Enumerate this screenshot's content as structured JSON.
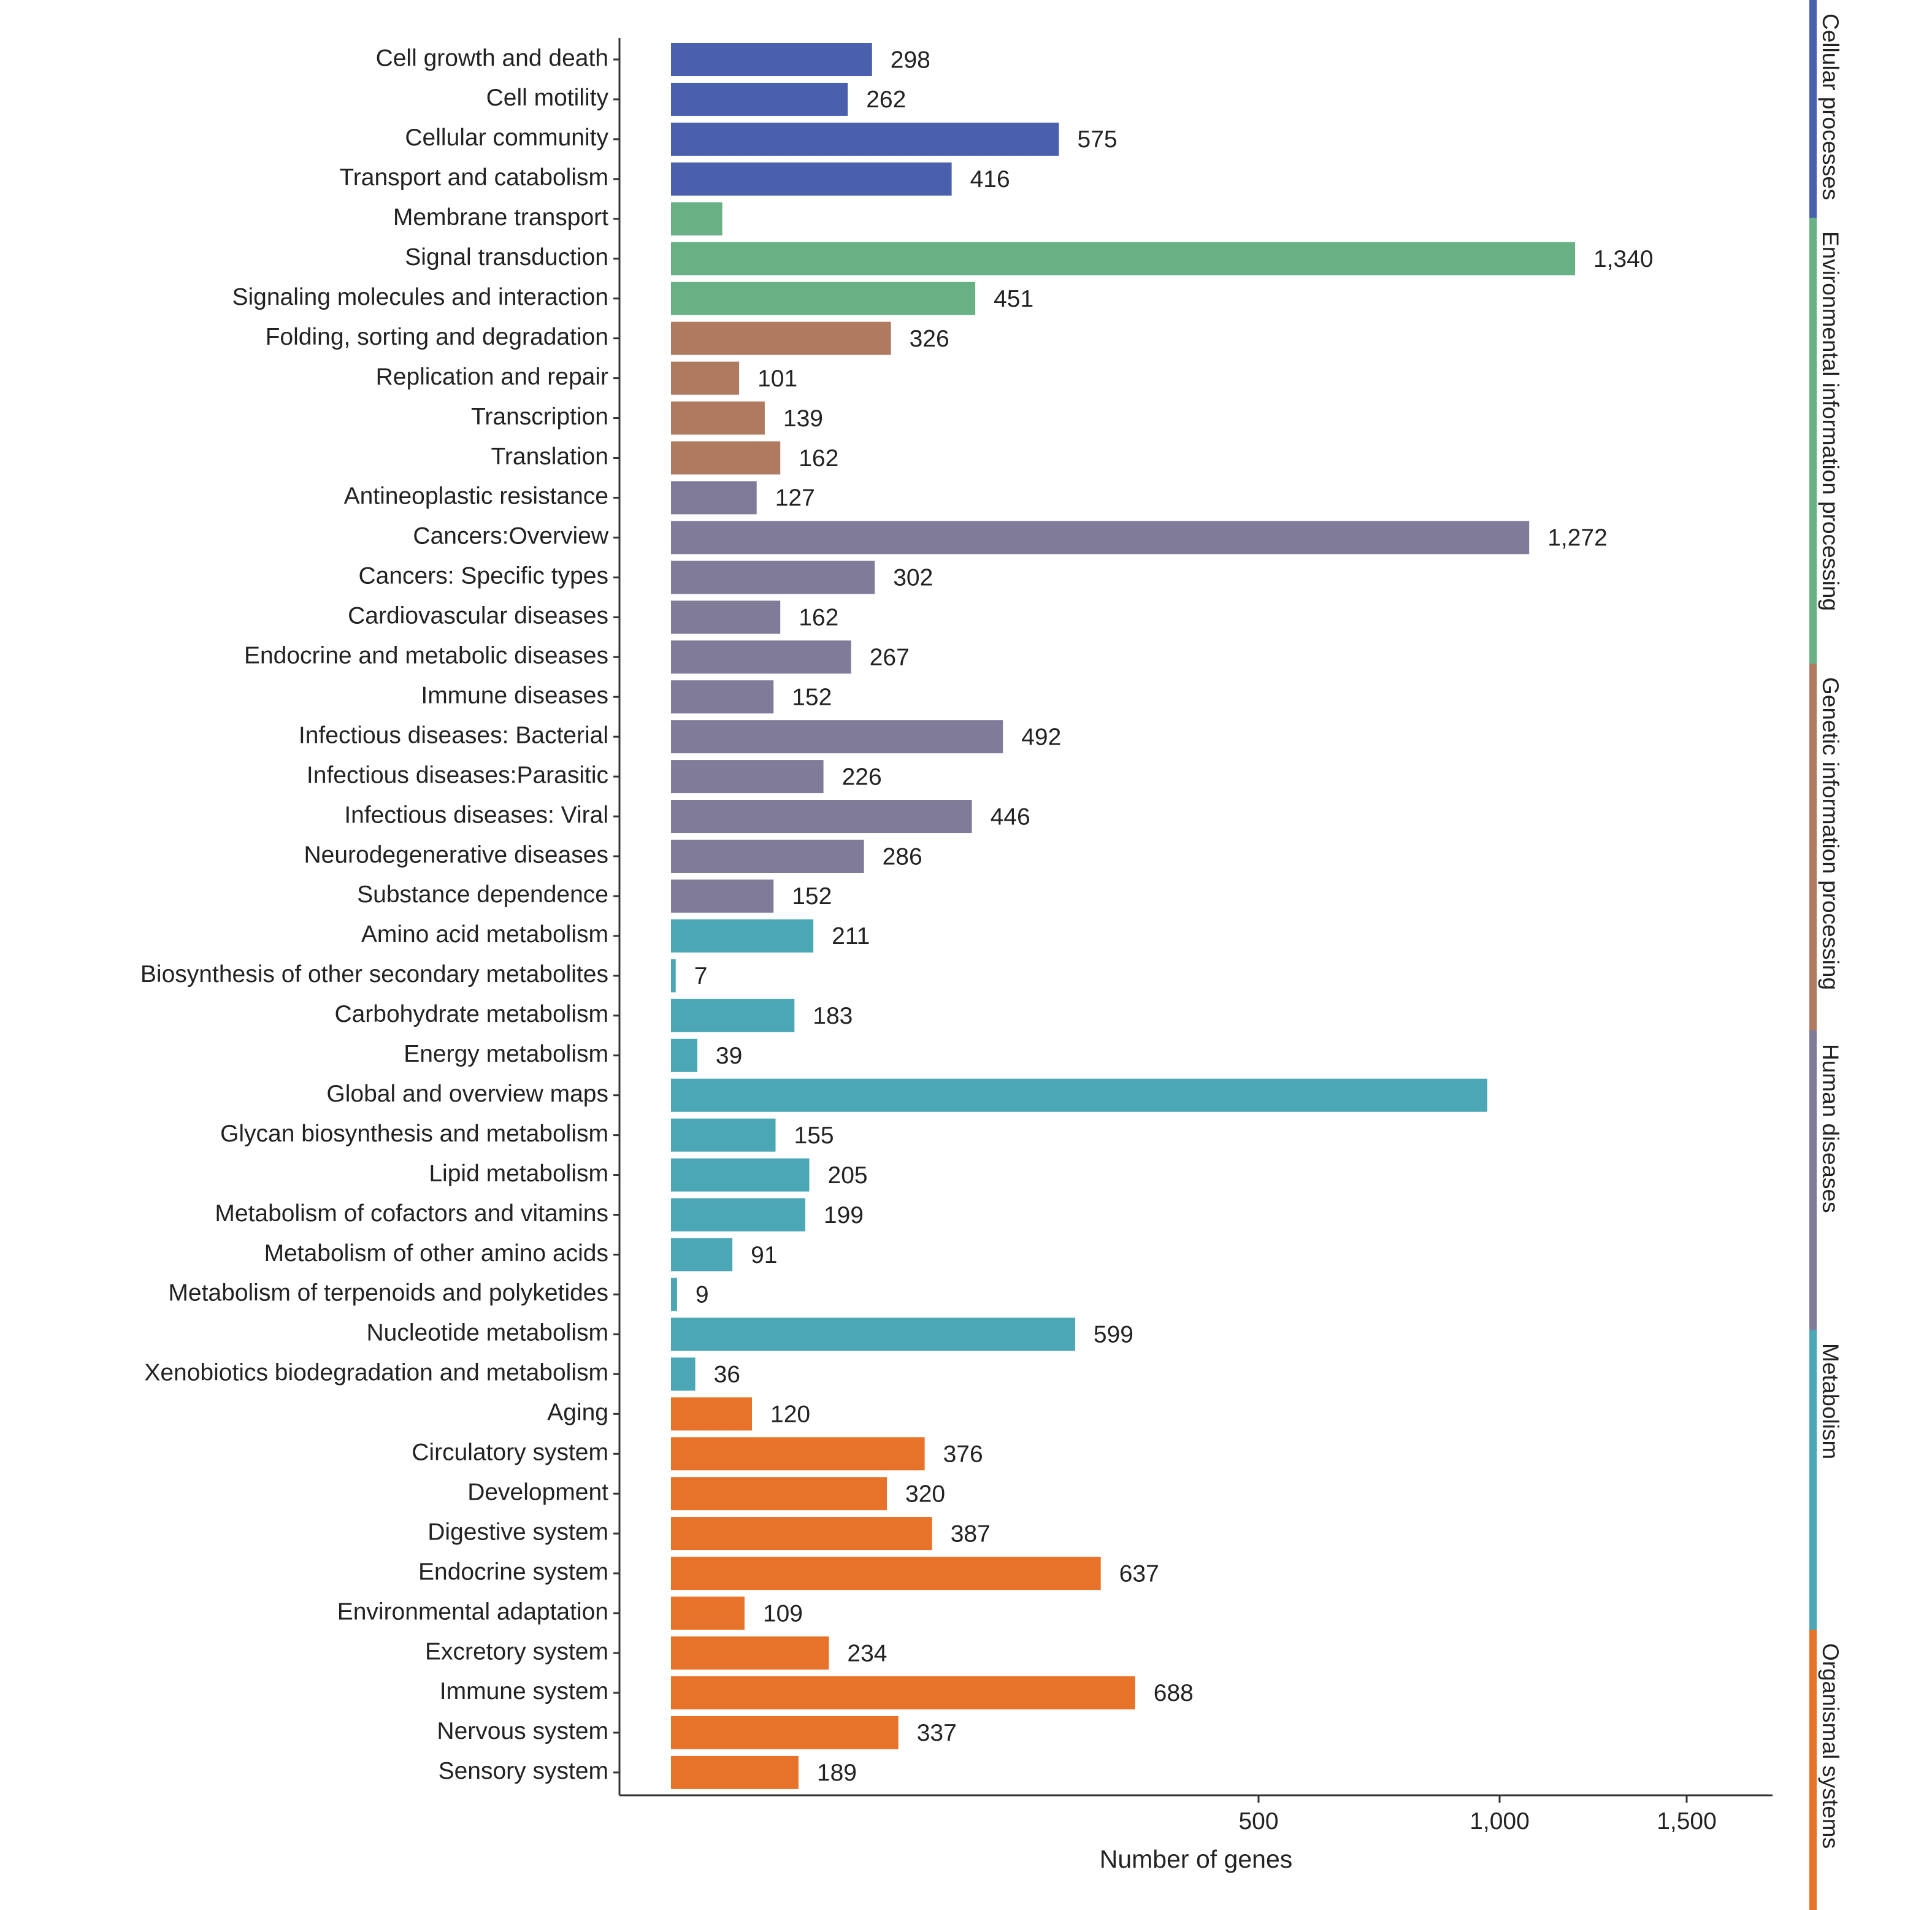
{
  "chart_data": {
    "type": "bar",
    "orientation": "horizontal",
    "xlabel": "Number of genes",
    "x_ticks": [
      500,
      1000,
      1500
    ],
    "x_tick_labels": [
      "500",
      "1,000",
      "1,500"
    ],
    "xlim": [
      0,
      1610
    ],
    "grid": false,
    "legend": "right side vertical color strips with rotated labels",
    "groups": [
      {
        "name": "Cellular processes",
        "color": "#4a60ad"
      },
      {
        "name": "Environmental information processing",
        "color": "#67b185"
      },
      {
        "name": "Genetic information processing",
        "color": "#b07a60"
      },
      {
        "name": "Human diseases",
        "color": "#807b99"
      },
      {
        "name": "Metabolism",
        "color": "#4ba6b6"
      },
      {
        "name": "Organismal systems",
        "color": "#e7732a"
      }
    ],
    "bars": [
      {
        "category": "Cell growth and death",
        "value": 298,
        "label": "298",
        "group": 0
      },
      {
        "category": "Cell motility",
        "value": 262,
        "label": "262",
        "group": 0
      },
      {
        "category": "Cellular community",
        "value": 575,
        "label": "575",
        "group": 0
      },
      {
        "category": "Transport and catabolism",
        "value": 416,
        "label": "416",
        "group": 0
      },
      {
        "category": "Membrane transport",
        "value": 76,
        "label": "",
        "group": 1
      },
      {
        "category": "Signal transduction",
        "value": 1340,
        "label": "1,340",
        "group": 1
      },
      {
        "category": "Signaling molecules and interaction",
        "value": 451,
        "label": "451",
        "group": 1
      },
      {
        "category": "Folding, sorting and degradation",
        "value": 326,
        "label": "326",
        "group": 2
      },
      {
        "category": "Replication and repair",
        "value": 101,
        "label": "101",
        "group": 2
      },
      {
        "category": "Transcription",
        "value": 139,
        "label": "139",
        "group": 2
      },
      {
        "category": "Translation",
        "value": 162,
        "label": "162",
        "group": 2
      },
      {
        "category": "Antineoplastic resistance",
        "value": 127,
        "label": "127",
        "group": 3
      },
      {
        "category": "Cancers:Overview",
        "value": 1272,
        "label": "1,272",
        "group": 3
      },
      {
        "category": "Cancers: Specific types",
        "value": 302,
        "label": "302",
        "group": 3
      },
      {
        "category": "Cardiovascular diseases",
        "value": 162,
        "label": "162",
        "group": 3
      },
      {
        "category": "Endocrine and metabolic diseases",
        "value": 267,
        "label": "267",
        "group": 3
      },
      {
        "category": "Immune diseases",
        "value": 152,
        "label": "152",
        "group": 3
      },
      {
        "category": "Infectious diseases: Bacterial",
        "value": 492,
        "label": "492",
        "group": 3
      },
      {
        "category": "Infectious diseases:Parasitic",
        "value": 226,
        "label": "226",
        "group": 3
      },
      {
        "category": "Infectious diseases: Viral",
        "value": 446,
        "label": "446",
        "group": 3
      },
      {
        "category": "Neurodegenerative diseases",
        "value": 286,
        "label": "286",
        "group": 3
      },
      {
        "category": "Substance dependence",
        "value": 152,
        "label": "152",
        "group": 3
      },
      {
        "category": "Amino acid metabolism",
        "value": 211,
        "label": "211",
        "group": 4
      },
      {
        "category": "Biosynthesis of other secondary metabolites",
        "value": 7,
        "label": "7",
        "group": 4
      },
      {
        "category": "Carbohydrate metabolism",
        "value": 183,
        "label": "183",
        "group": 4
      },
      {
        "category": "Energy metabolism",
        "value": 39,
        "label": "39",
        "group": 4
      },
      {
        "category": "Global and overview maps",
        "value": 1210,
        "label": "",
        "group": 4
      },
      {
        "category": "Glycan biosynthesis and metabolism",
        "value": 155,
        "label": "155",
        "group": 4
      },
      {
        "category": "Lipid metabolism",
        "value": 205,
        "label": "205",
        "group": 4
      },
      {
        "category": "Metabolism of cofactors and vitamins",
        "value": 199,
        "label": "199",
        "group": 4
      },
      {
        "category": "Metabolism of other amino acids",
        "value": 91,
        "label": "91",
        "group": 4
      },
      {
        "category": "Metabolism of terpenoids and polyketides",
        "value": 9,
        "label": "9",
        "group": 4
      },
      {
        "category": "Nucleotide metabolism",
        "value": 599,
        "label": "599",
        "group": 4
      },
      {
        "category": "Xenobiotics biodegradation and metabolism",
        "value": 36,
        "label": "36",
        "group": 4
      },
      {
        "category": "Aging",
        "value": 120,
        "label": "120",
        "group": 5
      },
      {
        "category": "Circulatory system",
        "value": 376,
        "label": "376",
        "group": 5
      },
      {
        "category": "Development",
        "value": 320,
        "label": "320",
        "group": 5
      },
      {
        "category": "Digestive system",
        "value": 387,
        "label": "387",
        "group": 5
      },
      {
        "category": "Endocrine system",
        "value": 637,
        "label": "637",
        "group": 5
      },
      {
        "category": "Environmental adaptation",
        "value": 109,
        "label": "109",
        "group": 5
      },
      {
        "category": "Excretory system",
        "value": 234,
        "label": "234",
        "group": 5
      },
      {
        "category": "Immune system",
        "value": 688,
        "label": "688",
        "group": 5
      },
      {
        "category": "Nervous system",
        "value": 337,
        "label": "337",
        "group": 5
      },
      {
        "category": "Sensory system",
        "value": 189,
        "label": "189",
        "group": 5
      }
    ]
  }
}
